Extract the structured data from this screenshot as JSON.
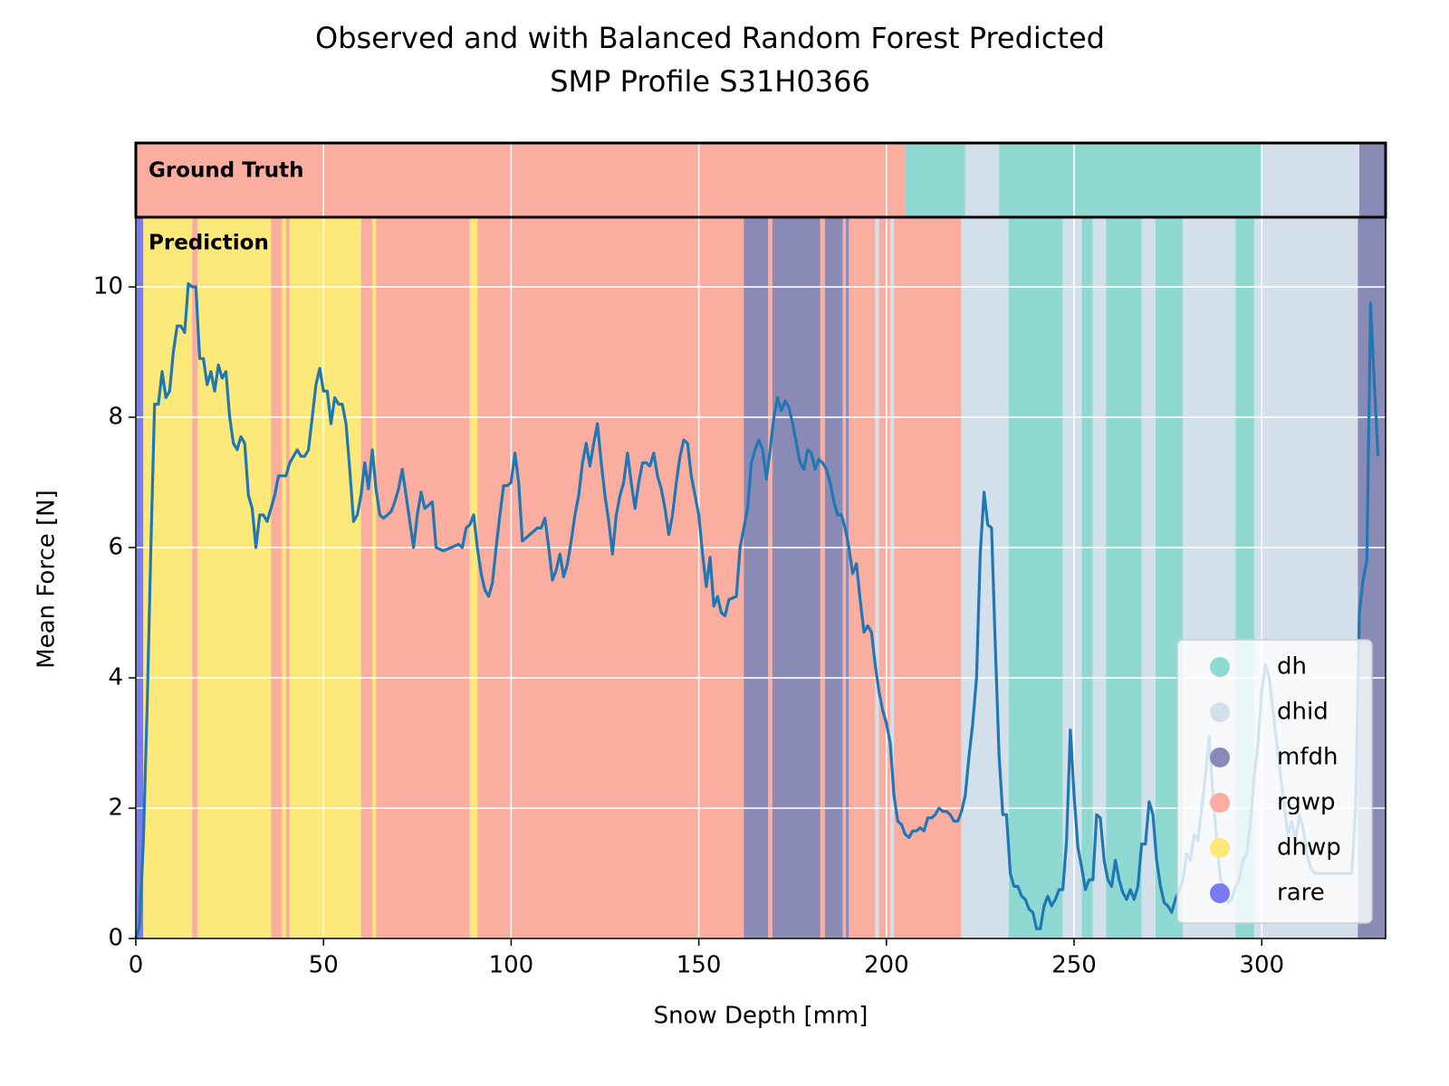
{
  "chart_data": {
    "type": "line",
    "title": [
      "Observed and with Balanced Random Forest Predicted",
      "SMP Profile S31H0366"
    ],
    "x_label": "Snow Depth [mm]",
    "y_label": "Mean Force [N]",
    "xlim": [
      0,
      333
    ],
    "ylim": [
      0,
      11.07
    ],
    "xticks": [
      0,
      50,
      100,
      150,
      200,
      250,
      300
    ],
    "yticks": [
      0,
      2,
      4,
      6,
      8,
      10
    ],
    "grid": true,
    "legend_position": "lower right",
    "band_labels": {
      "ground_truth": "Ground Truth",
      "prediction": "Prediction"
    },
    "classes": [
      {
        "name": "dh",
        "color": "#8fd9d2"
      },
      {
        "name": "dhid",
        "color": "#d4dfec"
      },
      {
        "name": "mfdh",
        "color": "#8a8ab7"
      },
      {
        "name": "rgwp",
        "color": "#fbaea0"
      },
      {
        "name": "dhwp",
        "color": "#fde97a"
      },
      {
        "name": "rare",
        "color": "#7a7af2"
      }
    ],
    "ground_truth_segments": [
      {
        "class": "rgwp",
        "start": 0,
        "end": 205
      },
      {
        "class": "dh",
        "start": 205,
        "end": 221
      },
      {
        "class": "dhid",
        "start": 221,
        "end": 230
      },
      {
        "class": "dh",
        "start": 230,
        "end": 300
      },
      {
        "class": "dhid",
        "start": 300,
        "end": 326
      },
      {
        "class": "mfdh",
        "start": 326,
        "end": 333
      }
    ],
    "prediction_segments": [
      {
        "class": "rare",
        "start": 0,
        "end": 2
      },
      {
        "class": "dhwp",
        "start": 2,
        "end": 15
      },
      {
        "class": "rgwp",
        "start": 15,
        "end": 16.5
      },
      {
        "class": "dhwp",
        "start": 16.5,
        "end": 36
      },
      {
        "class": "rgwp",
        "start": 36,
        "end": 39
      },
      {
        "class": "dhwp",
        "start": 39,
        "end": 40
      },
      {
        "class": "rgwp",
        "start": 40,
        "end": 41
      },
      {
        "class": "dhwp",
        "start": 41,
        "end": 60
      },
      {
        "class": "rgwp",
        "start": 60,
        "end": 63
      },
      {
        "class": "dhwp",
        "start": 63,
        "end": 64
      },
      {
        "class": "rgwp",
        "start": 64,
        "end": 89
      },
      {
        "class": "dhwp",
        "start": 89,
        "end": 91
      },
      {
        "class": "rgwp",
        "start": 91,
        "end": 162
      },
      {
        "class": "mfdh",
        "start": 162,
        "end": 168.5
      },
      {
        "class": "rgwp",
        "start": 168.5,
        "end": 169.6
      },
      {
        "class": "mfdh",
        "start": 169.6,
        "end": 182.4
      },
      {
        "class": "rgwp",
        "start": 182.4,
        "end": 183.6
      },
      {
        "class": "mfdh",
        "start": 183.6,
        "end": 188.4
      },
      {
        "class": "rgwp",
        "start": 188.4,
        "end": 189.2
      },
      {
        "class": "mfdh",
        "start": 189.2,
        "end": 190
      },
      {
        "class": "rgwp",
        "start": 190,
        "end": 197
      },
      {
        "class": "dhid",
        "start": 197,
        "end": 198
      },
      {
        "class": "rgwp",
        "start": 198,
        "end": 201
      },
      {
        "class": "dhid",
        "start": 201,
        "end": 202
      },
      {
        "class": "rgwp",
        "start": 202,
        "end": 220
      },
      {
        "class": "dhid",
        "start": 220,
        "end": 232.6
      },
      {
        "class": "dh",
        "start": 232.6,
        "end": 247
      },
      {
        "class": "dhid",
        "start": 247,
        "end": 252
      },
      {
        "class": "dh",
        "start": 252,
        "end": 255
      },
      {
        "class": "dhid",
        "start": 255,
        "end": 258.5
      },
      {
        "class": "dh",
        "start": 258.5,
        "end": 268
      },
      {
        "class": "dhid",
        "start": 268,
        "end": 271.7
      },
      {
        "class": "dh",
        "start": 271.7,
        "end": 279
      },
      {
        "class": "dhid",
        "start": 279,
        "end": 293
      },
      {
        "class": "dh",
        "start": 293,
        "end": 298
      },
      {
        "class": "dhid",
        "start": 298,
        "end": 325.6
      },
      {
        "class": "mfdh",
        "start": 325.6,
        "end": 333
      }
    ],
    "line_color": "#1f77b4",
    "x": [
      0,
      1,
      2,
      3,
      4,
      5,
      6,
      7,
      8,
      9,
      10,
      11,
      12,
      13,
      14,
      15,
      16,
      17,
      18,
      19,
      20,
      21,
      22,
      23,
      24,
      25,
      26,
      27,
      28,
      29,
      30,
      31,
      32,
      33,
      34,
      35,
      36,
      37,
      38,
      39,
      40,
      41,
      42,
      43,
      44,
      45,
      46,
      47,
      48,
      49,
      50,
      51,
      52,
      53,
      54,
      55,
      56,
      57,
      58,
      59,
      60,
      61,
      62,
      63,
      64,
      65,
      66,
      67,
      68,
      69,
      70,
      71,
      72,
      73,
      74,
      75,
      76,
      77,
      78,
      79,
      80,
      82,
      84,
      86,
      87,
      88,
      89,
      90,
      91,
      92,
      93,
      94,
      95,
      96,
      97,
      98,
      99,
      100,
      101,
      102,
      103,
      104,
      105,
      106,
      107,
      108,
      109,
      110,
      111,
      112,
      113,
      114,
      115,
      116,
      117,
      118,
      119,
      120,
      121,
      122,
      123,
      124,
      125,
      126,
      127,
      128,
      129,
      130,
      131,
      132,
      133,
      134,
      135,
      136,
      137,
      138,
      139,
      140,
      141,
      142,
      143,
      144,
      145,
      146,
      147,
      148,
      149,
      150,
      151,
      152,
      153,
      154,
      155,
      156,
      157,
      158,
      160,
      161,
      162,
      163,
      164,
      165,
      166,
      167,
      168,
      169,
      170,
      171,
      172,
      173,
      174,
      175,
      176,
      177,
      178,
      179,
      180,
      181,
      182,
      183,
      184,
      185,
      186,
      187,
      188,
      189,
      190,
      191,
      192,
      193,
      194,
      195,
      196,
      197,
      198,
      199,
      200,
      201,
      202,
      203,
      204,
      205,
      206,
      207,
      208,
      209,
      210,
      211,
      212,
      213,
      214,
      215,
      216,
      217,
      218,
      219,
      220,
      221,
      222,
      223,
      224,
      225,
      226,
      227,
      228,
      229,
      230,
      231,
      232,
      233,
      234,
      235,
      236,
      237,
      238,
      239,
      240,
      241,
      242,
      243,
      244,
      245,
      246,
      247,
      248,
      249,
      250,
      251,
      252,
      253,
      254,
      255,
      256,
      257,
      258,
      259,
      260,
      261,
      262,
      263,
      264,
      265,
      266,
      267,
      268,
      269,
      270,
      271,
      272,
      273,
      274,
      275,
      276,
      277,
      279,
      280,
      281,
      282,
      283,
      284,
      285,
      286,
      287,
      288,
      289,
      290,
      291,
      292,
      293,
      294,
      295,
      296,
      297,
      298,
      299,
      300,
      301,
      302,
      303,
      304,
      305,
      306,
      307,
      308,
      309,
      310,
      311,
      312,
      313,
      314,
      315,
      322,
      323,
      324,
      325,
      326,
      327,
      328,
      329,
      330,
      331
    ],
    "values": [
      0,
      0.2,
      1.5,
      3.5,
      6.0,
      8.2,
      8.2,
      8.7,
      8.3,
      8.4,
      9.0,
      9.4,
      9.4,
      9.3,
      10.05,
      10.0,
      10.0,
      8.9,
      8.9,
      8.5,
      8.7,
      8.4,
      8.8,
      8.6,
      8.7,
      8.0,
      7.6,
      7.5,
      7.7,
      7.6,
      6.8,
      6.6,
      6.0,
      6.5,
      6.5,
      6.4,
      6.6,
      6.8,
      7.1,
      7.1,
      7.1,
      7.3,
      7.4,
      7.5,
      7.4,
      7.4,
      7.5,
      8.0,
      8.5,
      8.75,
      8.4,
      8.4,
      7.9,
      8.3,
      8.2,
      8.2,
      7.9,
      7.2,
      6.4,
      6.5,
      6.8,
      7.3,
      6.9,
      7.5,
      6.9,
      6.5,
      6.45,
      6.5,
      6.55,
      6.7,
      6.9,
      7.2,
      6.8,
      6.4,
      6.0,
      6.5,
      6.85,
      6.6,
      6.65,
      6.7,
      6.0,
      5.95,
      6.0,
      6.05,
      6.0,
      6.3,
      6.35,
      6.5,
      6.0,
      5.6,
      5.35,
      5.25,
      5.45,
      6.0,
      6.5,
      6.95,
      6.95,
      7.0,
      7.45,
      7.0,
      6.1,
      6.15,
      6.2,
      6.25,
      6.3,
      6.3,
      6.45,
      6.0,
      5.5,
      5.65,
      5.9,
      5.55,
      5.75,
      6.1,
      6.5,
      6.8,
      7.3,
      7.6,
      7.25,
      7.6,
      7.9,
      7.3,
      6.8,
      6.4,
      5.9,
      6.5,
      6.8,
      7.0,
      7.45,
      7.0,
      6.6,
      7.0,
      7.3,
      7.3,
      7.25,
      7.45,
      7.1,
      6.9,
      6.6,
      6.2,
      6.5,
      7.0,
      7.4,
      7.65,
      7.6,
      7.1,
      6.8,
      6.5,
      5.9,
      5.4,
      5.85,
      5.1,
      5.25,
      5.0,
      4.95,
      5.2,
      5.25,
      6.0,
      6.3,
      6.6,
      7.3,
      7.5,
      7.65,
      7.5,
      7.05,
      7.5,
      8.0,
      8.3,
      8.1,
      8.25,
      8.15,
      7.9,
      7.6,
      7.3,
      7.2,
      7.5,
      7.45,
      7.2,
      7.35,
      7.3,
      7.2,
      7.0,
      6.7,
      6.5,
      6.5,
      6.3,
      6.0,
      5.6,
      5.75,
      5.2,
      4.7,
      4.8,
      4.7,
      4.2,
      3.8,
      3.5,
      3.3,
      3.0,
      2.2,
      1.8,
      1.75,
      1.6,
      1.55,
      1.65,
      1.65,
      1.7,
      1.65,
      1.85,
      1.85,
      1.9,
      2.0,
      1.95,
      1.95,
      1.9,
      1.8,
      1.8,
      1.95,
      2.2,
      2.8,
      3.3,
      4.0,
      5.9,
      6.85,
      6.35,
      6.3,
      4.5,
      2.8,
      1.9,
      1.9,
      1.0,
      0.8,
      0.8,
      0.65,
      0.6,
      0.45,
      0.4,
      0.15,
      0.15,
      0.5,
      0.65,
      0.5,
      0.6,
      0.75,
      0.75,
      1.5,
      3.2,
      2.2,
      1.4,
      1.1,
      0.75,
      0.9,
      0.9,
      1.9,
      1.85,
      1.2,
      0.9,
      0.8,
      1.2,
      0.9,
      0.7,
      0.6,
      0.75,
      0.6,
      0.8,
      1.45,
      1.45,
      2.1,
      1.9,
      1.2,
      0.8,
      0.55,
      0.5,
      0.4,
      0.6,
      0.9,
      1.3,
      1.2,
      1.6,
      1.5,
      2.0,
      2.5,
      3.1,
      2.2,
      1.5,
      0.9,
      0.8,
      0.55,
      0.6,
      0.8,
      0.9,
      1.2,
      1.3,
      1.8,
      2.5,
      3.0,
      3.8,
      4.2,
      4.0,
      3.5,
      3.0,
      2.5,
      2.0,
      1.6,
      1.8,
      1.5,
      1.9,
      1.7,
      1.3,
      1.1,
      1.0,
      1.0,
      1.0,
      1.0,
      1.0,
      2.0,
      5.0,
      5.5,
      5.8,
      9.75,
      8.5,
      7.4
    ]
  }
}
